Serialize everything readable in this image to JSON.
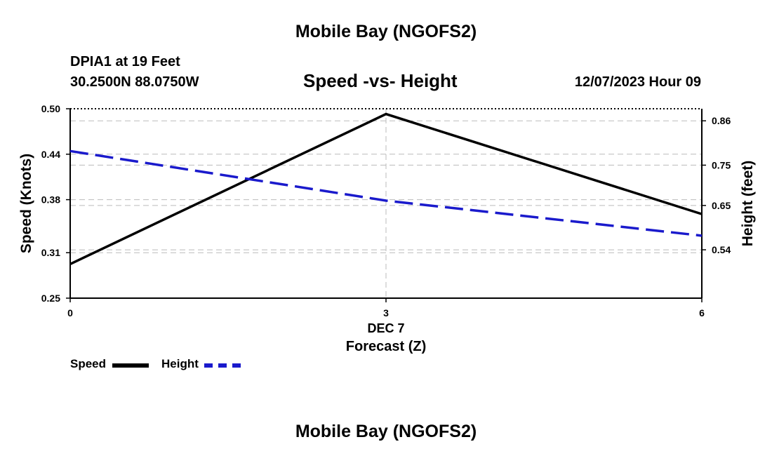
{
  "header": {
    "title_top": "Mobile Bay (NGOFS2)",
    "station_line": "DPIA1 at 19 Feet",
    "coords_line": "30.2500N  88.0750W",
    "chart_title": "Speed -vs- Height",
    "datetime": "12/07/2023 Hour 09"
  },
  "footer": {
    "title_bottom": "Mobile Bay (NGOFS2)"
  },
  "chart_data": {
    "type": "line",
    "title": "Speed -vs- Height",
    "xlabel": "Forecast (Z)",
    "x_date_label": "DEC 7",
    "x": [
      0,
      3,
      6
    ],
    "xlim": [
      0,
      6
    ],
    "x_ticks": [
      "0",
      "3",
      "6"
    ],
    "y_left": {
      "label": "Speed (Knots)",
      "ylim": [
        0.25,
        0.5
      ],
      "ticks": [
        "0.50",
        "0.44",
        "0.38",
        "0.31",
        "0.25"
      ]
    },
    "y_right": {
      "label": "Height (feet)",
      "ylim": [
        0.42,
        0.89
      ],
      "ticks": [
        "0.86",
        "0.75",
        "0.65",
        "0.54"
      ]
    },
    "grid": true,
    "series": [
      {
        "name": "Speed",
        "axis": "left",
        "color": "#000000",
        "dash": "solid",
        "values": [
          0.295,
          0.493,
          0.361
        ]
      },
      {
        "name": "Height",
        "axis": "right",
        "color": "#1a1acc",
        "dash": "dashed",
        "values": [
          0.785,
          0.662,
          0.575
        ]
      }
    ],
    "legend_position": "bottom-left"
  }
}
